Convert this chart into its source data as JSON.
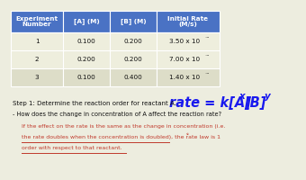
{
  "table_headers": [
    "Experiment\nNumber",
    "[A] (M)",
    "[B] (M)",
    "Initial Rate\n(M/s)"
  ],
  "table_rows": [
    [
      "1",
      "0.100",
      "0.200",
      "3.50 x 10⁻⁴"
    ],
    [
      "2",
      "0.200",
      "0.200",
      "7.00 x 10⁻⁴"
    ],
    [
      "3",
      "0.100",
      "0.400",
      "1.40 x 10⁻⁴"
    ]
  ],
  "header_bg": "#4a72c4",
  "header_fg": "#ffffff",
  "row_odd_bg": "#eeeedd",
  "row_even_bg": "#ddddc8",
  "rate_color": "#1a1aee",
  "step_color": "#111111",
  "red_color": "#c0392b",
  "bg_color": "#ededdf",
  "step1_text": "Step 1: Determine the reaction order for reactant A.",
  "bullet_text": "- How does the change in concentration of A affect the reaction rate?",
  "red_line1": "If the effect on the rate is the same as the change in concentration (i.e.",
  "red_line2": "the rate doubles when the concentration is doubled), the rate law is 1",
  "red_line2_sup": "st",
  "red_line3": "order with respect to that reactant."
}
